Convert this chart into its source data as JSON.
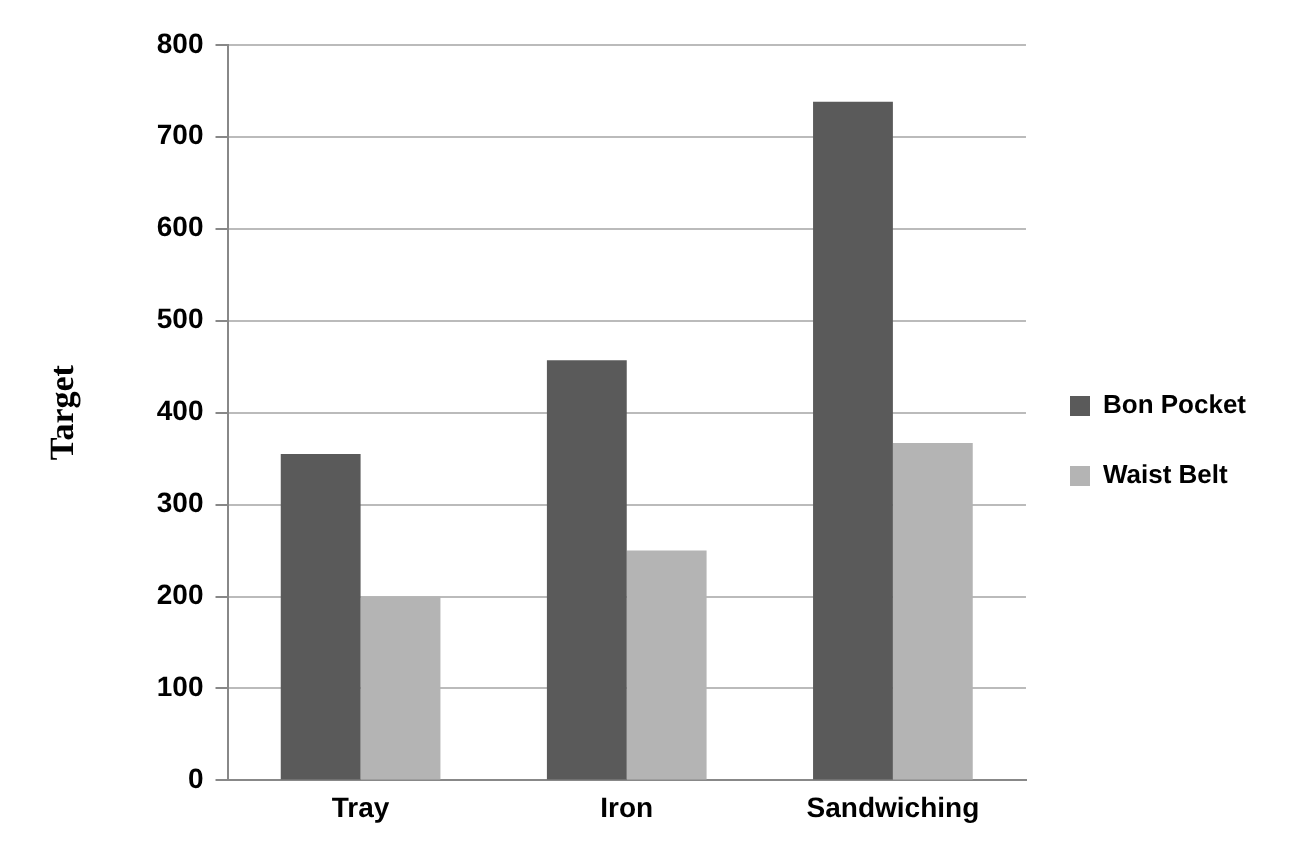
{
  "chart_data": {
    "type": "bar",
    "ylabel": "Target",
    "categories": [
      "Tray",
      "Iron",
      "Sandwiching"
    ],
    "series": [
      {
        "name": "Bon Pocket",
        "color": "#5a5a5a",
        "values": [
          355,
          457,
          738
        ]
      },
      {
        "name": "Waist Belt",
        "color": "#b4b4b4",
        "values": [
          200,
          250,
          367
        ]
      }
    ],
    "ylim": [
      0,
      800
    ],
    "yticks": [
      0,
      100,
      200,
      300,
      400,
      500,
      600,
      700,
      800
    ],
    "grid": "y",
    "legend": "right"
  }
}
